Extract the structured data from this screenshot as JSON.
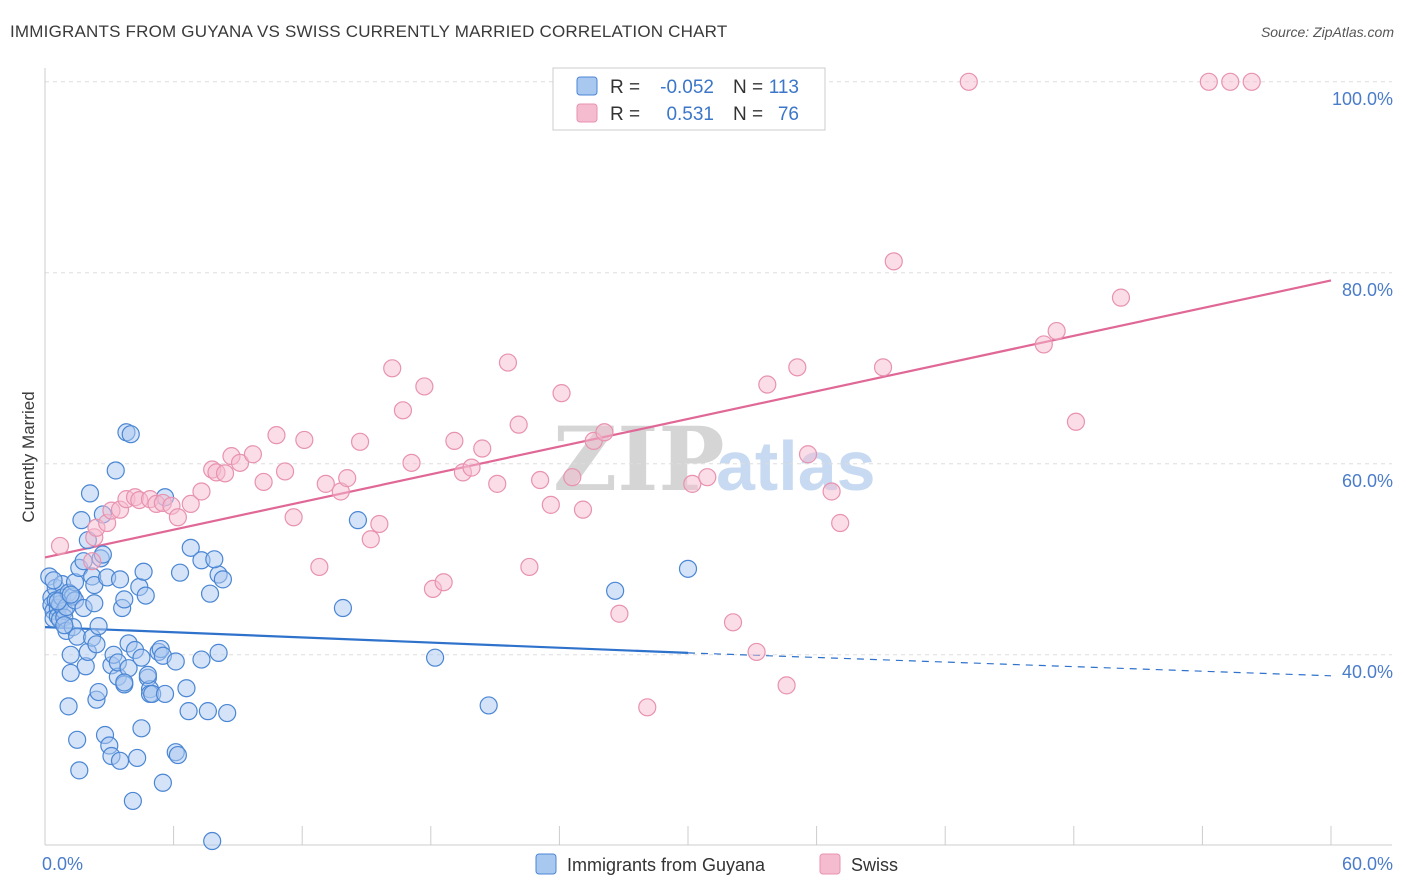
{
  "title": "IMMIGRANTS FROM GUYANA VS SWISS CURRENTLY MARRIED CORRELATION CHART",
  "source": "Source: ZipAtlas.com",
  "watermark": {
    "zip": "ZIP",
    "atlas": "atlas"
  },
  "colors": {
    "guyana_fill": "#a9c8f0",
    "guyana_stroke": "#4a86d4",
    "guyana_line": "#2f72cc",
    "swiss_fill": "#f5bcd0",
    "swiss_stroke": "#e892b0",
    "swiss_line": "#e06896",
    "grid": "#dddddd",
    "axis_text": "#4a7cc9"
  },
  "legend": {
    "rows": [
      {
        "r_label": "R =",
        "r_value": "-0.052",
        "n_label": "N =",
        "n_value": "113"
      },
      {
        "r_label": "R =",
        "r_value": "0.531",
        "n_label": "N =",
        "n_value": "76"
      }
    ]
  },
  "bottom_legend": [
    {
      "label": "Immigrants from Guyana"
    },
    {
      "label": "Swiss"
    }
  ],
  "chart_data": {
    "type": "scatter",
    "ylabel": "Currently Married",
    "xlim": [
      0,
      60
    ],
    "ylim": [
      20,
      100
    ],
    "x_tick_labels": [
      "0.0%",
      "60.0%"
    ],
    "y_ticks": [
      40,
      60,
      80,
      100
    ],
    "y_tick_labels": [
      "40.0%",
      "60.0%",
      "80.0%",
      "100.0%"
    ],
    "grid": "horizontal dashed",
    "legend_position": "top-center",
    "series": [
      {
        "name": "Immigrants from Guyana",
        "color": "#4a86d4",
        "trend": {
          "x0": 0,
          "y0": 42.9,
          "x1": 30,
          "y1": 40.2,
          "dashed_to_x": 60,
          "dashed_y1": 37.8
        },
        "points": [
          [
            0.2,
            48.2
          ],
          [
            0.3,
            46.0
          ],
          [
            0.3,
            45.2
          ],
          [
            0.4,
            44.6
          ],
          [
            0.4,
            43.8
          ],
          [
            0.5,
            47.0
          ],
          [
            0.5,
            45.7
          ],
          [
            0.6,
            44.9
          ],
          [
            0.6,
            44.0
          ],
          [
            0.7,
            45.3
          ],
          [
            0.7,
            43.7
          ],
          [
            0.8,
            47.4
          ],
          [
            0.8,
            46.0
          ],
          [
            0.9,
            44.6
          ],
          [
            0.9,
            43.9
          ],
          [
            1.0,
            42.5
          ],
          [
            1.0,
            45.0
          ],
          [
            1.1,
            46.5
          ],
          [
            1.1,
            34.6
          ],
          [
            1.2,
            40.0
          ],
          [
            1.2,
            38.1
          ],
          [
            1.3,
            42.9
          ],
          [
            1.3,
            46.1
          ],
          [
            1.4,
            47.6
          ],
          [
            1.4,
            45.7
          ],
          [
            1.5,
            41.9
          ],
          [
            1.5,
            31.1
          ],
          [
            1.6,
            27.9
          ],
          [
            1.6,
            49.1
          ],
          [
            1.7,
            54.1
          ],
          [
            1.8,
            44.9
          ],
          [
            1.9,
            38.8
          ],
          [
            2.0,
            40.3
          ],
          [
            2.0,
            52.0
          ],
          [
            2.1,
            56.9
          ],
          [
            2.2,
            48.2
          ],
          [
            2.2,
            41.8
          ],
          [
            2.3,
            47.3
          ],
          [
            2.4,
            35.3
          ],
          [
            2.4,
            41.1
          ],
          [
            2.5,
            36.1
          ],
          [
            2.5,
            43.0
          ],
          [
            2.6,
            50.1
          ],
          [
            2.7,
            50.5
          ],
          [
            2.7,
            54.7
          ],
          [
            2.8,
            31.6
          ],
          [
            2.9,
            48.1
          ],
          [
            3.0,
            30.5
          ],
          [
            3.1,
            29.4
          ],
          [
            3.1,
            38.9
          ],
          [
            3.2,
            40.0
          ],
          [
            3.3,
            59.3
          ],
          [
            3.4,
            37.7
          ],
          [
            3.4,
            39.2
          ],
          [
            3.5,
            28.9
          ],
          [
            3.5,
            47.9
          ],
          [
            3.6,
            44.9
          ],
          [
            3.7,
            36.9
          ],
          [
            3.7,
            45.8
          ],
          [
            3.8,
            63.3
          ],
          [
            3.9,
            41.2
          ],
          [
            3.9,
            38.6
          ],
          [
            4.0,
            63.1
          ],
          [
            4.1,
            24.7
          ],
          [
            4.2,
            40.5
          ],
          [
            4.3,
            29.2
          ],
          [
            4.4,
            47.1
          ],
          [
            4.5,
            32.3
          ],
          [
            4.5,
            39.7
          ],
          [
            4.6,
            48.7
          ],
          [
            4.7,
            46.2
          ],
          [
            4.8,
            37.6
          ],
          [
            4.9,
            36.4
          ],
          [
            4.9,
            35.9
          ],
          [
            5.0,
            35.9
          ],
          [
            5.3,
            40.3
          ],
          [
            5.4,
            40.6
          ],
          [
            5.5,
            39.9
          ],
          [
            5.5,
            26.6
          ],
          [
            5.6,
            35.9
          ],
          [
            5.6,
            56.5
          ],
          [
            6.1,
            39.3
          ],
          [
            6.1,
            29.8
          ],
          [
            6.2,
            29.5
          ],
          [
            6.3,
            48.6
          ],
          [
            6.6,
            36.5
          ],
          [
            6.7,
            34.1
          ],
          [
            6.8,
            51.2
          ],
          [
            7.3,
            49.9
          ],
          [
            7.3,
            39.5
          ],
          [
            7.6,
            34.1
          ],
          [
            7.7,
            46.4
          ],
          [
            7.8,
            20.5
          ],
          [
            8.1,
            40.2
          ],
          [
            8.1,
            48.4
          ],
          [
            8.3,
            47.9
          ],
          [
            8.5,
            33.9
          ],
          [
            13.9,
            44.9
          ],
          [
            14.6,
            54.1
          ],
          [
            18.2,
            39.7
          ],
          [
            20.7,
            34.7
          ],
          [
            26.6,
            46.7
          ],
          [
            30.0,
            49.0
          ],
          [
            0.4,
            47.8
          ],
          [
            0.6,
            45.6
          ],
          [
            0.9,
            43.1
          ],
          [
            1.2,
            46.3
          ],
          [
            1.8,
            49.8
          ],
          [
            2.3,
            45.4
          ],
          [
            3.7,
            37.1
          ],
          [
            4.8,
            37.9
          ],
          [
            7.9,
            50.0
          ]
        ]
      },
      {
        "name": "Swiss",
        "color": "#e892b0",
        "trend": {
          "x0": 0,
          "y0": 50.2,
          "x1": 60,
          "y1": 79.2
        },
        "points": [
          [
            0.7,
            51.4
          ],
          [
            2.2,
            49.8
          ],
          [
            2.3,
            52.3
          ],
          [
            2.4,
            53.3
          ],
          [
            2.9,
            53.8
          ],
          [
            3.1,
            55.1
          ],
          [
            3.5,
            55.2
          ],
          [
            3.8,
            56.3
          ],
          [
            4.2,
            56.5
          ],
          [
            4.4,
            56.2
          ],
          [
            4.9,
            56.3
          ],
          [
            5.2,
            55.8
          ],
          [
            5.5,
            55.9
          ],
          [
            5.9,
            55.6
          ],
          [
            6.2,
            54.4
          ],
          [
            6.8,
            55.8
          ],
          [
            7.3,
            57.1
          ],
          [
            7.8,
            59.4
          ],
          [
            8.0,
            59.1
          ],
          [
            8.4,
            59.0
          ],
          [
            8.7,
            60.8
          ],
          [
            9.1,
            60.1
          ],
          [
            9.7,
            61.0
          ],
          [
            10.2,
            58.1
          ],
          [
            10.8,
            63.0
          ],
          [
            11.2,
            59.2
          ],
          [
            11.6,
            54.4
          ],
          [
            12.1,
            62.5
          ],
          [
            12.8,
            49.2
          ],
          [
            13.1,
            57.9
          ],
          [
            13.8,
            57.1
          ],
          [
            14.1,
            58.5
          ],
          [
            14.7,
            62.3
          ],
          [
            15.2,
            52.1
          ],
          [
            15.6,
            53.7
          ],
          [
            16.2,
            70.0
          ],
          [
            16.7,
            65.6
          ],
          [
            17.1,
            60.1
          ],
          [
            17.7,
            68.1
          ],
          [
            18.1,
            46.9
          ],
          [
            18.6,
            47.6
          ],
          [
            19.1,
            62.4
          ],
          [
            19.5,
            59.1
          ],
          [
            19.9,
            59.6
          ],
          [
            20.4,
            61.6
          ],
          [
            21.1,
            57.9
          ],
          [
            21.6,
            70.6
          ],
          [
            22.1,
            64.1
          ],
          [
            22.6,
            49.2
          ],
          [
            23.1,
            58.3
          ],
          [
            23.6,
            55.7
          ],
          [
            24.1,
            67.4
          ],
          [
            24.6,
            58.6
          ],
          [
            25.1,
            55.2
          ],
          [
            25.6,
            62.4
          ],
          [
            26.1,
            63.3
          ],
          [
            26.8,
            44.3
          ],
          [
            28.1,
            34.5
          ],
          [
            30.2,
            57.9
          ],
          [
            30.9,
            58.6
          ],
          [
            32.1,
            43.4
          ],
          [
            33.2,
            40.3
          ],
          [
            33.7,
            68.3
          ],
          [
            34.6,
            36.8
          ],
          [
            35.1,
            70.1
          ],
          [
            35.6,
            61.0
          ],
          [
            36.7,
            57.1
          ],
          [
            37.1,
            53.8
          ],
          [
            39.1,
            70.1
          ],
          [
            39.6,
            81.2
          ],
          [
            43.1,
            100.0
          ],
          [
            46.6,
            72.5
          ],
          [
            47.2,
            73.9
          ],
          [
            48.1,
            64.4
          ],
          [
            50.2,
            77.4
          ],
          [
            54.3,
            100.0
          ],
          [
            55.3,
            100.0
          ],
          [
            56.3,
            100.0
          ]
        ]
      }
    ]
  }
}
